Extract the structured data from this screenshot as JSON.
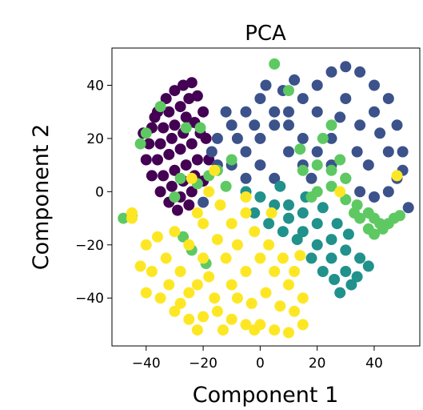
{
  "chart_data": {
    "type": "scatter",
    "title": "PCA",
    "xlabel": "Component 1",
    "ylabel": "Component 2",
    "xlim": [
      -52,
      56
    ],
    "ylim": [
      -58,
      54
    ],
    "x_ticks": [
      -40,
      -20,
      0,
      20,
      40
    ],
    "x_tick_labels": [
      "−40",
      "−20",
      "0",
      "20",
      "40"
    ],
    "y_ticks": [
      40,
      20,
      0,
      -20,
      -40
    ],
    "y_tick_labels": [
      "40",
      "20",
      "0",
      "−20",
      "−40"
    ],
    "grid": false,
    "legend": "none",
    "colormap": "viridis",
    "series": [
      {
        "color": "#440154",
        "points": [
          [
            -33,
            35
          ],
          [
            -30,
            38
          ],
          [
            -27,
            40
          ],
          [
            -24,
            41
          ],
          [
            -36,
            30
          ],
          [
            -32,
            30
          ],
          [
            -28,
            32
          ],
          [
            -25,
            35
          ],
          [
            -38,
            24
          ],
          [
            -34,
            24
          ],
          [
            -30,
            25
          ],
          [
            -26,
            28
          ],
          [
            -22,
            36
          ],
          [
            -39,
            18
          ],
          [
            -35,
            18
          ],
          [
            -31,
            20
          ],
          [
            -27,
            22
          ],
          [
            -23,
            26
          ],
          [
            -20,
            30
          ],
          [
            -40,
            12
          ],
          [
            -36,
            12
          ],
          [
            -32,
            14
          ],
          [
            -28,
            16
          ],
          [
            -24,
            18
          ],
          [
            -21,
            22
          ],
          [
            -38,
            6
          ],
          [
            -34,
            6
          ],
          [
            -30,
            8
          ],
          [
            -26,
            10
          ],
          [
            -22,
            12
          ],
          [
            -35,
            0
          ],
          [
            -31,
            2
          ],
          [
            -27,
            4
          ],
          [
            -23,
            6
          ],
          [
            -32,
            -4
          ],
          [
            -28,
            -2
          ],
          [
            -24,
            0
          ],
          [
            -29,
            -7
          ],
          [
            -25,
            -5
          ],
          [
            -20,
            4
          ],
          [
            -18,
            12
          ],
          [
            -19,
            20
          ],
          [
            -37,
            28
          ],
          [
            -41,
            22
          ]
        ]
      },
      {
        "color": "#3b528b",
        "points": [
          [
            -10,
            10
          ],
          [
            -5,
            15
          ],
          [
            0,
            20
          ],
          [
            5,
            25
          ],
          [
            10,
            30
          ],
          [
            15,
            35
          ],
          [
            20,
            40
          ],
          [
            25,
            45
          ],
          [
            30,
            47
          ],
          [
            35,
            45
          ],
          [
            40,
            40
          ],
          [
            45,
            35
          ],
          [
            48,
            25
          ],
          [
            50,
            15
          ],
          [
            48,
            5
          ],
          [
            45,
            0
          ],
          [
            40,
            -2
          ],
          [
            35,
            0
          ],
          [
            30,
            5
          ],
          [
            25,
            10
          ],
          [
            20,
            15
          ],
          [
            15,
            20
          ],
          [
            10,
            25
          ],
          [
            5,
            30
          ],
          [
            0,
            35
          ],
          [
            -5,
            30
          ],
          [
            -10,
            25
          ],
          [
            -15,
            20
          ],
          [
            -15,
            10
          ],
          [
            -5,
            5
          ],
          [
            5,
            5
          ],
          [
            15,
            10
          ],
          [
            25,
            20
          ],
          [
            35,
            25
          ],
          [
            40,
            30
          ],
          [
            45,
            15
          ],
          [
            30,
            35
          ],
          [
            20,
            30
          ],
          [
            10,
            15
          ],
          [
            0,
            10
          ],
          [
            -8,
            20
          ],
          [
            12,
            42
          ],
          [
            2,
            40
          ],
          [
            -12,
            30
          ],
          [
            38,
            10
          ],
          [
            50,
            8
          ],
          [
            52,
            -6
          ],
          [
            -20,
            -4
          ],
          [
            -17,
            15
          ],
          [
            18,
            5
          ],
          [
            28,
            28
          ],
          [
            42,
            22
          ],
          [
            34,
            15
          ],
          [
            -2,
            25
          ],
          [
            8,
            38
          ]
        ]
      },
      {
        "color": "#21918c",
        "points": [
          [
            -5,
            0
          ],
          [
            0,
            -2
          ],
          [
            5,
            -5
          ],
          [
            10,
            -10
          ],
          [
            15,
            -15
          ],
          [
            20,
            -20
          ],
          [
            25,
            -25
          ],
          [
            30,
            -30
          ],
          [
            32,
            -35
          ],
          [
            28,
            -38
          ],
          [
            35,
            -25
          ],
          [
            38,
            -28
          ],
          [
            10,
            -5
          ],
          [
            15,
            -8
          ],
          [
            20,
            -12
          ],
          [
            25,
            -18
          ],
          [
            30,
            -22
          ],
          [
            -2,
            -8
          ],
          [
            3,
            -12
          ],
          [
            8,
            -15
          ],
          [
            13,
            -18
          ],
          [
            18,
            -25
          ],
          [
            22,
            -30
          ],
          [
            26,
            -33
          ],
          [
            34,
            -32
          ],
          [
            16,
            -2
          ],
          [
            22,
            -6
          ],
          [
            27,
            -12
          ],
          [
            31,
            -16
          ],
          [
            7,
            2
          ]
        ]
      },
      {
        "color": "#5ec962",
        "points": [
          [
            15,
            8
          ],
          [
            20,
            10
          ],
          [
            25,
            8
          ],
          [
            30,
            5
          ],
          [
            25,
            2
          ],
          [
            20,
            0
          ],
          [
            30,
            -3
          ],
          [
            33,
            -8
          ],
          [
            35,
            -10
          ],
          [
            38,
            -8
          ],
          [
            40,
            -10
          ],
          [
            42,
            -12
          ],
          [
            45,
            -12
          ],
          [
            47,
            -10
          ],
          [
            49,
            -9
          ],
          [
            43,
            -14
          ],
          [
            38,
            -14
          ],
          [
            34,
            -5
          ],
          [
            28,
            12
          ],
          [
            18,
            -2
          ],
          [
            -48,
            -10
          ],
          [
            -45,
            -9
          ],
          [
            -27,
            -17
          ],
          [
            -24,
            -22
          ],
          [
            -35,
            32
          ],
          [
            -15,
            8
          ],
          [
            -18,
            6
          ],
          [
            -22,
            3
          ],
          [
            -28,
            5
          ],
          [
            -30,
            -2
          ],
          [
            14,
            16
          ],
          [
            40,
            -16
          ],
          [
            -40,
            22
          ],
          [
            -42,
            18
          ],
          [
            -10,
            12
          ],
          [
            -19,
            -27
          ],
          [
            5,
            48
          ],
          [
            10,
            38
          ],
          [
            25,
            25
          ],
          [
            -21,
            24
          ],
          [
            -26,
            24
          ],
          [
            -12,
            2
          ],
          [
            22,
            20
          ]
        ]
      },
      {
        "color": "#fde725",
        "points": [
          [
            -45,
            -10
          ],
          [
            -40,
            -20
          ],
          [
            -38,
            -30
          ],
          [
            -35,
            -40
          ],
          [
            -30,
            -45
          ],
          [
            -25,
            -48
          ],
          [
            -20,
            -47
          ],
          [
            -15,
            -45
          ],
          [
            -10,
            -48
          ],
          [
            -5,
            -50
          ],
          [
            0,
            -50
          ],
          [
            5,
            -52
          ],
          [
            10,
            -53
          ],
          [
            15,
            -50
          ],
          [
            -33,
            -25
          ],
          [
            -28,
            -30
          ],
          [
            -22,
            -35
          ],
          [
            -16,
            -40
          ],
          [
            -10,
            -35
          ],
          [
            -5,
            -30
          ],
          [
            0,
            -25
          ],
          [
            5,
            -30
          ],
          [
            10,
            -35
          ],
          [
            15,
            -40
          ],
          [
            -30,
            -15
          ],
          [
            -25,
            -20
          ],
          [
            -20,
            -25
          ],
          [
            -15,
            -18
          ],
          [
            -10,
            -12
          ],
          [
            -5,
            -8
          ],
          [
            -2,
            -15
          ],
          [
            3,
            -20
          ],
          [
            8,
            -25
          ],
          [
            12,
            -30
          ],
          [
            -12,
            -25
          ],
          [
            -18,
            -32
          ],
          [
            -25,
            -38
          ],
          [
            -32,
            -35
          ],
          [
            -20,
            -12
          ],
          [
            -8,
            -20
          ],
          [
            -14,
            -5
          ],
          [
            -18,
            0
          ],
          [
            -5,
            -2
          ],
          [
            -22,
            -8
          ],
          [
            -36,
            -17
          ],
          [
            -42,
            -28
          ],
          [
            -40,
            -38
          ],
          [
            2,
            -38
          ],
          [
            7,
            -43
          ],
          [
            12,
            -45
          ],
          [
            -28,
            -42
          ],
          [
            -3,
            -42
          ],
          [
            -13,
            -52
          ],
          [
            -22,
            -52
          ],
          [
            -8,
            -40
          ],
          [
            4,
            -8
          ],
          [
            -16,
            8
          ],
          [
            -24,
            5
          ],
          [
            28,
            0
          ],
          [
            48,
            6
          ],
          [
            -45,
            -8
          ],
          [
            -2,
            -52
          ],
          [
            14,
            -24
          ]
        ]
      }
    ]
  }
}
